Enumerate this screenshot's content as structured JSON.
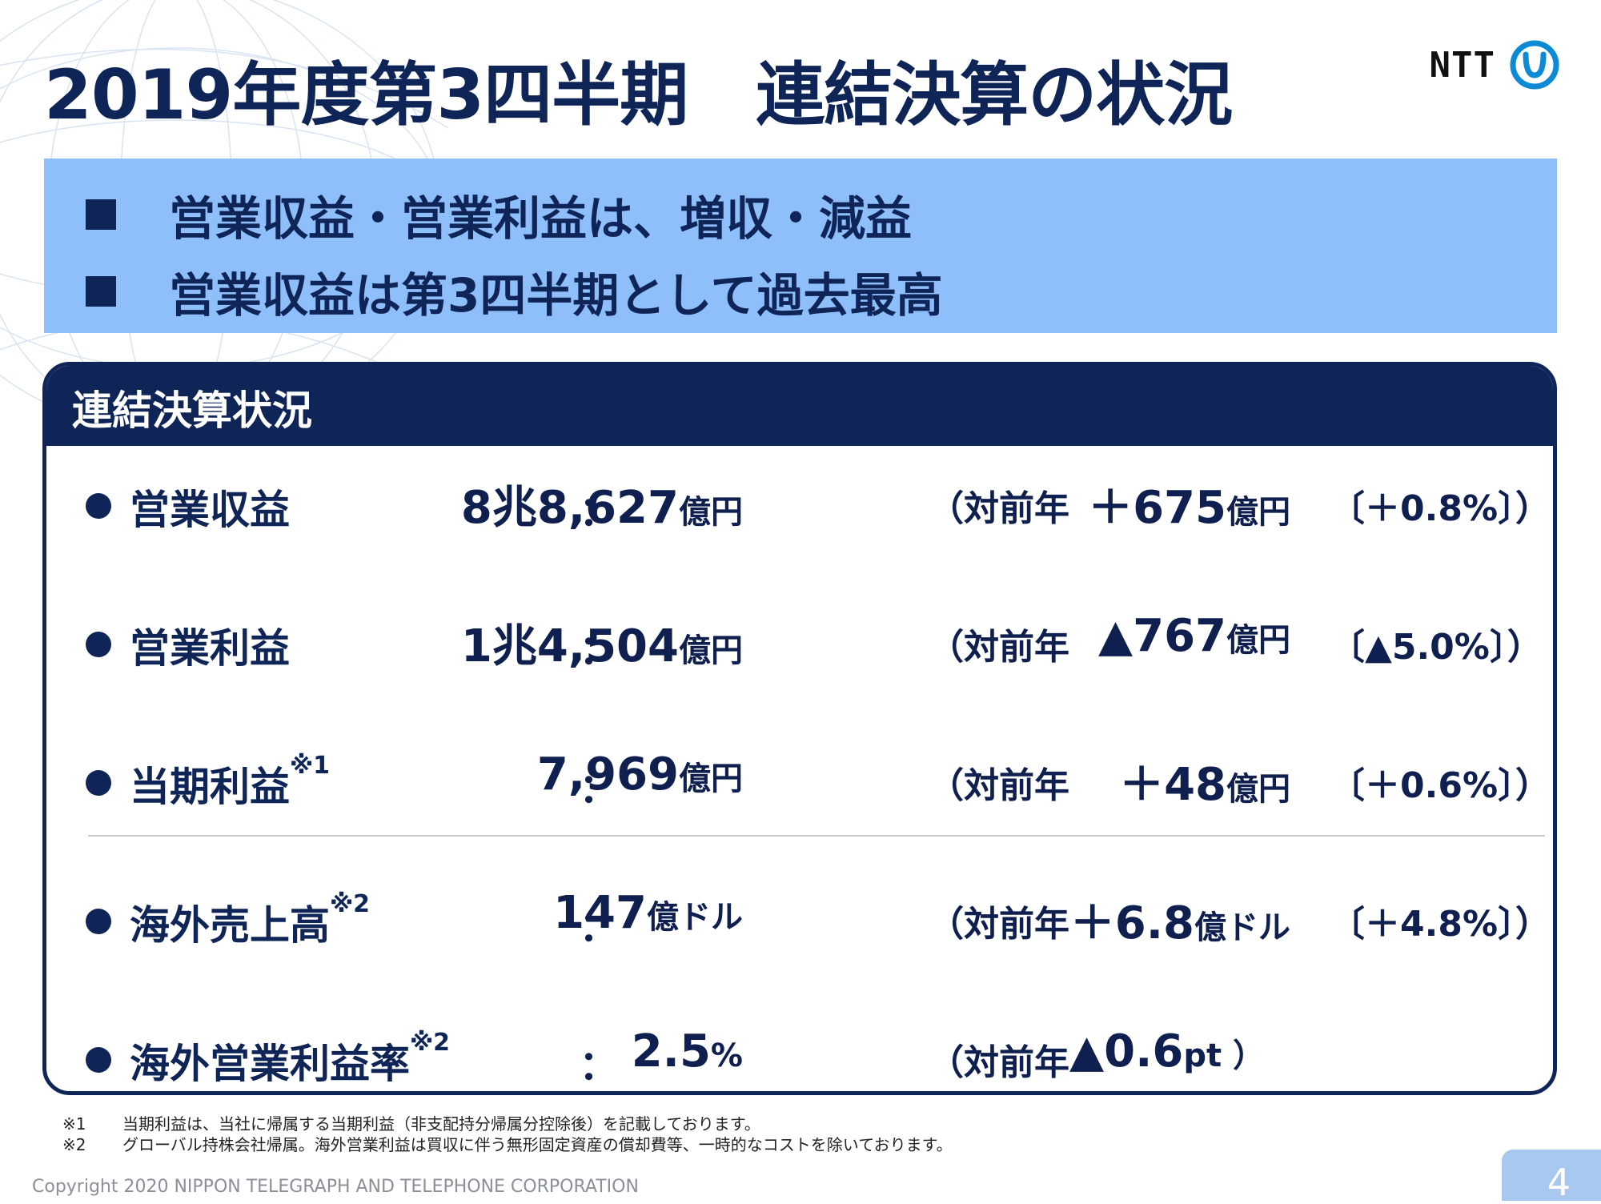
{
  "title": "2019年度第3四半期　連結決算の状況",
  "logo": {
    "text": "NTT",
    "icon": "ntt-logo-icon",
    "color": "#0c8ad6"
  },
  "highlights": [
    "営業収益・営業利益は、増収・減益",
    "営業収益は第3四半期として過去最高"
  ],
  "panel": {
    "title": "連結決算状況",
    "rows": [
      {
        "label": "営業収益",
        "note": "",
        "value_num": "8兆8,627",
        "value_unit": "億円",
        "yoy": "（対前年",
        "change_num": "＋675",
        "change_unit": "億円",
        "pct": "〔＋0.8%〕）"
      },
      {
        "label": "営業利益",
        "note": "",
        "value_num": "1兆4,504",
        "value_unit": "億円",
        "yoy": "（対前年",
        "change_num": "▲767",
        "change_unit": "億円",
        "pct": "〔▲5.0%〕）"
      },
      {
        "label": "当期利益",
        "note": "※1",
        "value_num": "7,969",
        "value_unit": "億円",
        "yoy": "（対前年",
        "change_num": "＋48",
        "change_unit": "億円",
        "pct": "〔＋0.6%〕）"
      },
      {
        "label": "海外売上高",
        "note": "※2",
        "value_num": "147",
        "value_unit": "億ドル",
        "yoy": "（対前年",
        "change_num": "＋6.8",
        "change_unit": "億ドル",
        "pct": "〔＋4.8%〕）"
      },
      {
        "label": "海外営業利益率",
        "note": "※2",
        "value_num": "2.5",
        "value_unit": "%",
        "yoy": "（対前年",
        "change_num": "▲0.6",
        "change_unit": "pt ）",
        "pct": ""
      }
    ],
    "colon": "："
  },
  "footnotes": [
    {
      "mark": "※1",
      "text": "当期利益は、当社に帰属する当期利益（非支配持分帰属分控除後）を記載しております。"
    },
    {
      "mark": "※2",
      "text": "グローバル持株会社帰属。海外営業利益は買収に伴う無形固定資産の償却費等、一時的なコストを除いております。"
    }
  ],
  "copyright": "Copyright 2020 NIPPON TELEGRAPH AND TELEPHONE CORPORATION",
  "page_number": "4"
}
